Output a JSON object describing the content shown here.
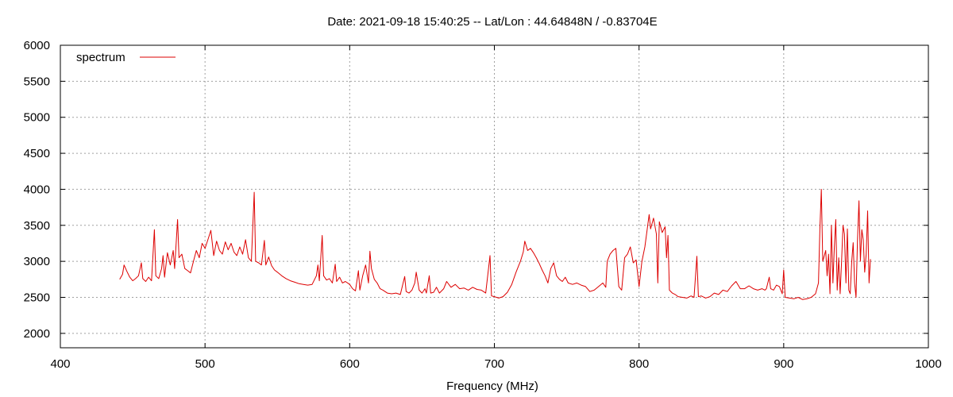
{
  "chart_data": {
    "type": "line",
    "title": "Date: 2021-09-18 15:40:25  --  Lat/Lon : 44.64848N / -0.83704E",
    "xlabel": "Frequency (MHz)",
    "ylabel": "",
    "xlim": [
      400,
      1000
    ],
    "ylim": [
      1800,
      6000
    ],
    "xticks": [
      400,
      500,
      600,
      700,
      800,
      900,
      1000
    ],
    "yticks": [
      2000,
      2500,
      3000,
      3500,
      4000,
      4500,
      5000,
      5500,
      6000
    ],
    "grid": true,
    "legend": "top-left",
    "colors": {
      "series": "#dd0000",
      "grid": "#a0a0a0",
      "axes": "#000000"
    },
    "series": [
      {
        "name": "spectrum",
        "points": [
          [
            441,
            2750
          ],
          [
            443,
            2820
          ],
          [
            444,
            2950
          ],
          [
            446,
            2860
          ],
          [
            448,
            2780
          ],
          [
            450,
            2730
          ],
          [
            452,
            2760
          ],
          [
            454,
            2800
          ],
          [
            456,
            2980
          ],
          [
            457,
            2760
          ],
          [
            459,
            2720
          ],
          [
            461,
            2780
          ],
          [
            463,
            2730
          ],
          [
            465,
            3440
          ],
          [
            466,
            2800
          ],
          [
            468,
            2760
          ],
          [
            470,
            2900
          ],
          [
            471,
            3080
          ],
          [
            472,
            2780
          ],
          [
            474,
            3120
          ],
          [
            476,
            2950
          ],
          [
            478,
            3150
          ],
          [
            479,
            2900
          ],
          [
            481,
            3580
          ],
          [
            482,
            3050
          ],
          [
            484,
            3100
          ],
          [
            486,
            2900
          ],
          [
            488,
            2870
          ],
          [
            490,
            2840
          ],
          [
            492,
            3000
          ],
          [
            494,
            3150
          ],
          [
            496,
            3050
          ],
          [
            498,
            3250
          ],
          [
            500,
            3180
          ],
          [
            502,
            3300
          ],
          [
            504,
            3430
          ],
          [
            506,
            3080
          ],
          [
            508,
            3280
          ],
          [
            510,
            3150
          ],
          [
            512,
            3100
          ],
          [
            514,
            3270
          ],
          [
            516,
            3160
          ],
          [
            518,
            3250
          ],
          [
            520,
            3130
          ],
          [
            522,
            3080
          ],
          [
            524,
            3200
          ],
          [
            526,
            3100
          ],
          [
            528,
            3300
          ],
          [
            530,
            3050
          ],
          [
            532,
            3000
          ],
          [
            534,
            3960
          ],
          [
            535,
            3000
          ],
          [
            537,
            2980
          ],
          [
            539,
            2950
          ],
          [
            541,
            3290
          ],
          [
            542,
            2950
          ],
          [
            544,
            3060
          ],
          [
            546,
            2940
          ],
          [
            548,
            2880
          ],
          [
            550,
            2850
          ],
          [
            553,
            2800
          ],
          [
            556,
            2760
          ],
          [
            559,
            2730
          ],
          [
            562,
            2710
          ],
          [
            565,
            2690
          ],
          [
            568,
            2680
          ],
          [
            571,
            2670
          ],
          [
            574,
            2680
          ],
          [
            577,
            2800
          ],
          [
            578,
            2950
          ],
          [
            579,
            2730
          ],
          [
            581,
            3360
          ],
          [
            582,
            2800
          ],
          [
            584,
            2740
          ],
          [
            586,
            2760
          ],
          [
            588,
            2700
          ],
          [
            590,
            2960
          ],
          [
            591,
            2720
          ],
          [
            593,
            2780
          ],
          [
            595,
            2700
          ],
          [
            597,
            2720
          ],
          [
            600,
            2680
          ],
          [
            602,
            2620
          ],
          [
            604,
            2590
          ],
          [
            606,
            2870
          ],
          [
            607,
            2600
          ],
          [
            609,
            2800
          ],
          [
            611,
            2950
          ],
          [
            613,
            2700
          ],
          [
            614,
            3140
          ],
          [
            615,
            2900
          ],
          [
            617,
            2750
          ],
          [
            619,
            2700
          ],
          [
            621,
            2620
          ],
          [
            623,
            2600
          ],
          [
            626,
            2560
          ],
          [
            629,
            2550
          ],
          [
            632,
            2560
          ],
          [
            635,
            2540
          ],
          [
            638,
            2790
          ],
          [
            639,
            2580
          ],
          [
            641,
            2560
          ],
          [
            643,
            2600
          ],
          [
            645,
            2700
          ],
          [
            646,
            2850
          ],
          [
            648,
            2600
          ],
          [
            650,
            2560
          ],
          [
            652,
            2620
          ],
          [
            653,
            2560
          ],
          [
            655,
            2800
          ],
          [
            656,
            2560
          ],
          [
            658,
            2570
          ],
          [
            660,
            2640
          ],
          [
            662,
            2560
          ],
          [
            665,
            2620
          ],
          [
            667,
            2720
          ],
          [
            670,
            2640
          ],
          [
            673,
            2680
          ],
          [
            676,
            2620
          ],
          [
            679,
            2630
          ],
          [
            682,
            2600
          ],
          [
            685,
            2640
          ],
          [
            688,
            2610
          ],
          [
            691,
            2600
          ],
          [
            694,
            2560
          ],
          [
            697,
            3080
          ],
          [
            698,
            2520
          ],
          [
            700,
            2510
          ],
          [
            703,
            2490
          ],
          [
            706,
            2510
          ],
          [
            709,
            2570
          ],
          [
            712,
            2680
          ],
          [
            715,
            2850
          ],
          [
            718,
            3000
          ],
          [
            720,
            3130
          ],
          [
            721,
            3280
          ],
          [
            723,
            3150
          ],
          [
            725,
            3180
          ],
          [
            727,
            3120
          ],
          [
            729,
            3050
          ],
          [
            731,
            2970
          ],
          [
            733,
            2880
          ],
          [
            735,
            2800
          ],
          [
            737,
            2700
          ],
          [
            739,
            2900
          ],
          [
            741,
            2980
          ],
          [
            743,
            2800
          ],
          [
            745,
            2750
          ],
          [
            747,
            2720
          ],
          [
            749,
            2780
          ],
          [
            751,
            2700
          ],
          [
            754,
            2680
          ],
          [
            757,
            2700
          ],
          [
            760,
            2670
          ],
          [
            763,
            2650
          ],
          [
            766,
            2580
          ],
          [
            769,
            2600
          ],
          [
            772,
            2650
          ],
          [
            775,
            2700
          ],
          [
            777,
            2640
          ],
          [
            778,
            3000
          ],
          [
            780,
            3100
          ],
          [
            782,
            3150
          ],
          [
            784,
            3180
          ],
          [
            786,
            2650
          ],
          [
            788,
            2600
          ],
          [
            790,
            3050
          ],
          [
            792,
            3100
          ],
          [
            794,
            3200
          ],
          [
            796,
            2980
          ],
          [
            798,
            3020
          ],
          [
            800,
            2650
          ],
          [
            802,
            3000
          ],
          [
            804,
            3200
          ],
          [
            806,
            3500
          ],
          [
            807,
            3650
          ],
          [
            808,
            3450
          ],
          [
            810,
            3600
          ],
          [
            812,
            3380
          ],
          [
            813,
            2700
          ],
          [
            814,
            3550
          ],
          [
            816,
            3400
          ],
          [
            818,
            3480
          ],
          [
            819,
            3050
          ],
          [
            820,
            3360
          ],
          [
            821,
            2600
          ],
          [
            823,
            2560
          ],
          [
            825,
            2540
          ],
          [
            827,
            2510
          ],
          [
            830,
            2500
          ],
          [
            833,
            2490
          ],
          [
            836,
            2520
          ],
          [
            838,
            2500
          ],
          [
            840,
            3070
          ],
          [
            841,
            2510
          ],
          [
            843,
            2520
          ],
          [
            846,
            2490
          ],
          [
            849,
            2510
          ],
          [
            852,
            2560
          ],
          [
            855,
            2540
          ],
          [
            858,
            2600
          ],
          [
            861,
            2580
          ],
          [
            864,
            2660
          ],
          [
            867,
            2720
          ],
          [
            870,
            2620
          ],
          [
            873,
            2620
          ],
          [
            876,
            2660
          ],
          [
            879,
            2620
          ],
          [
            882,
            2600
          ],
          [
            885,
            2620
          ],
          [
            887,
            2600
          ],
          [
            888,
            2620
          ],
          [
            890,
            2780
          ],
          [
            891,
            2620
          ],
          [
            893,
            2600
          ],
          [
            895,
            2670
          ],
          [
            897,
            2650
          ],
          [
            899,
            2550
          ],
          [
            900,
            2880
          ],
          [
            901,
            2500
          ],
          [
            904,
            2490
          ],
          [
            907,
            2480
          ],
          [
            910,
            2500
          ],
          [
            913,
            2470
          ],
          [
            916,
            2480
          ],
          [
            919,
            2500
          ],
          [
            922,
            2550
          ],
          [
            924,
            2700
          ],
          [
            925,
            3450
          ],
          [
            926,
            4000
          ],
          [
            927,
            3000
          ],
          [
            929,
            3150
          ],
          [
            930,
            2800
          ],
          [
            931,
            3100
          ],
          [
            932,
            2550
          ],
          [
            933,
            3500
          ],
          [
            934,
            2700
          ],
          [
            935,
            3200
          ],
          [
            936,
            3580
          ],
          [
            937,
            2600
          ],
          [
            938,
            3050
          ],
          [
            939,
            2550
          ],
          [
            940,
            3000
          ],
          [
            941,
            3500
          ],
          [
            942,
            3380
          ],
          [
            943,
            2700
          ],
          [
            944,
            3450
          ],
          [
            945,
            2600
          ],
          [
            946,
            2550
          ],
          [
            947,
            3000
          ],
          [
            948,
            3260
          ],
          [
            949,
            2700
          ],
          [
            950,
            2500
          ],
          [
            951,
            3280
          ],
          [
            952,
            3840
          ],
          [
            953,
            3000
          ],
          [
            954,
            3440
          ],
          [
            955,
            3300
          ],
          [
            956,
            2850
          ],
          [
            957,
            3100
          ],
          [
            958,
            3700
          ],
          [
            959,
            2700
          ],
          [
            960,
            3030
          ]
        ]
      }
    ]
  }
}
